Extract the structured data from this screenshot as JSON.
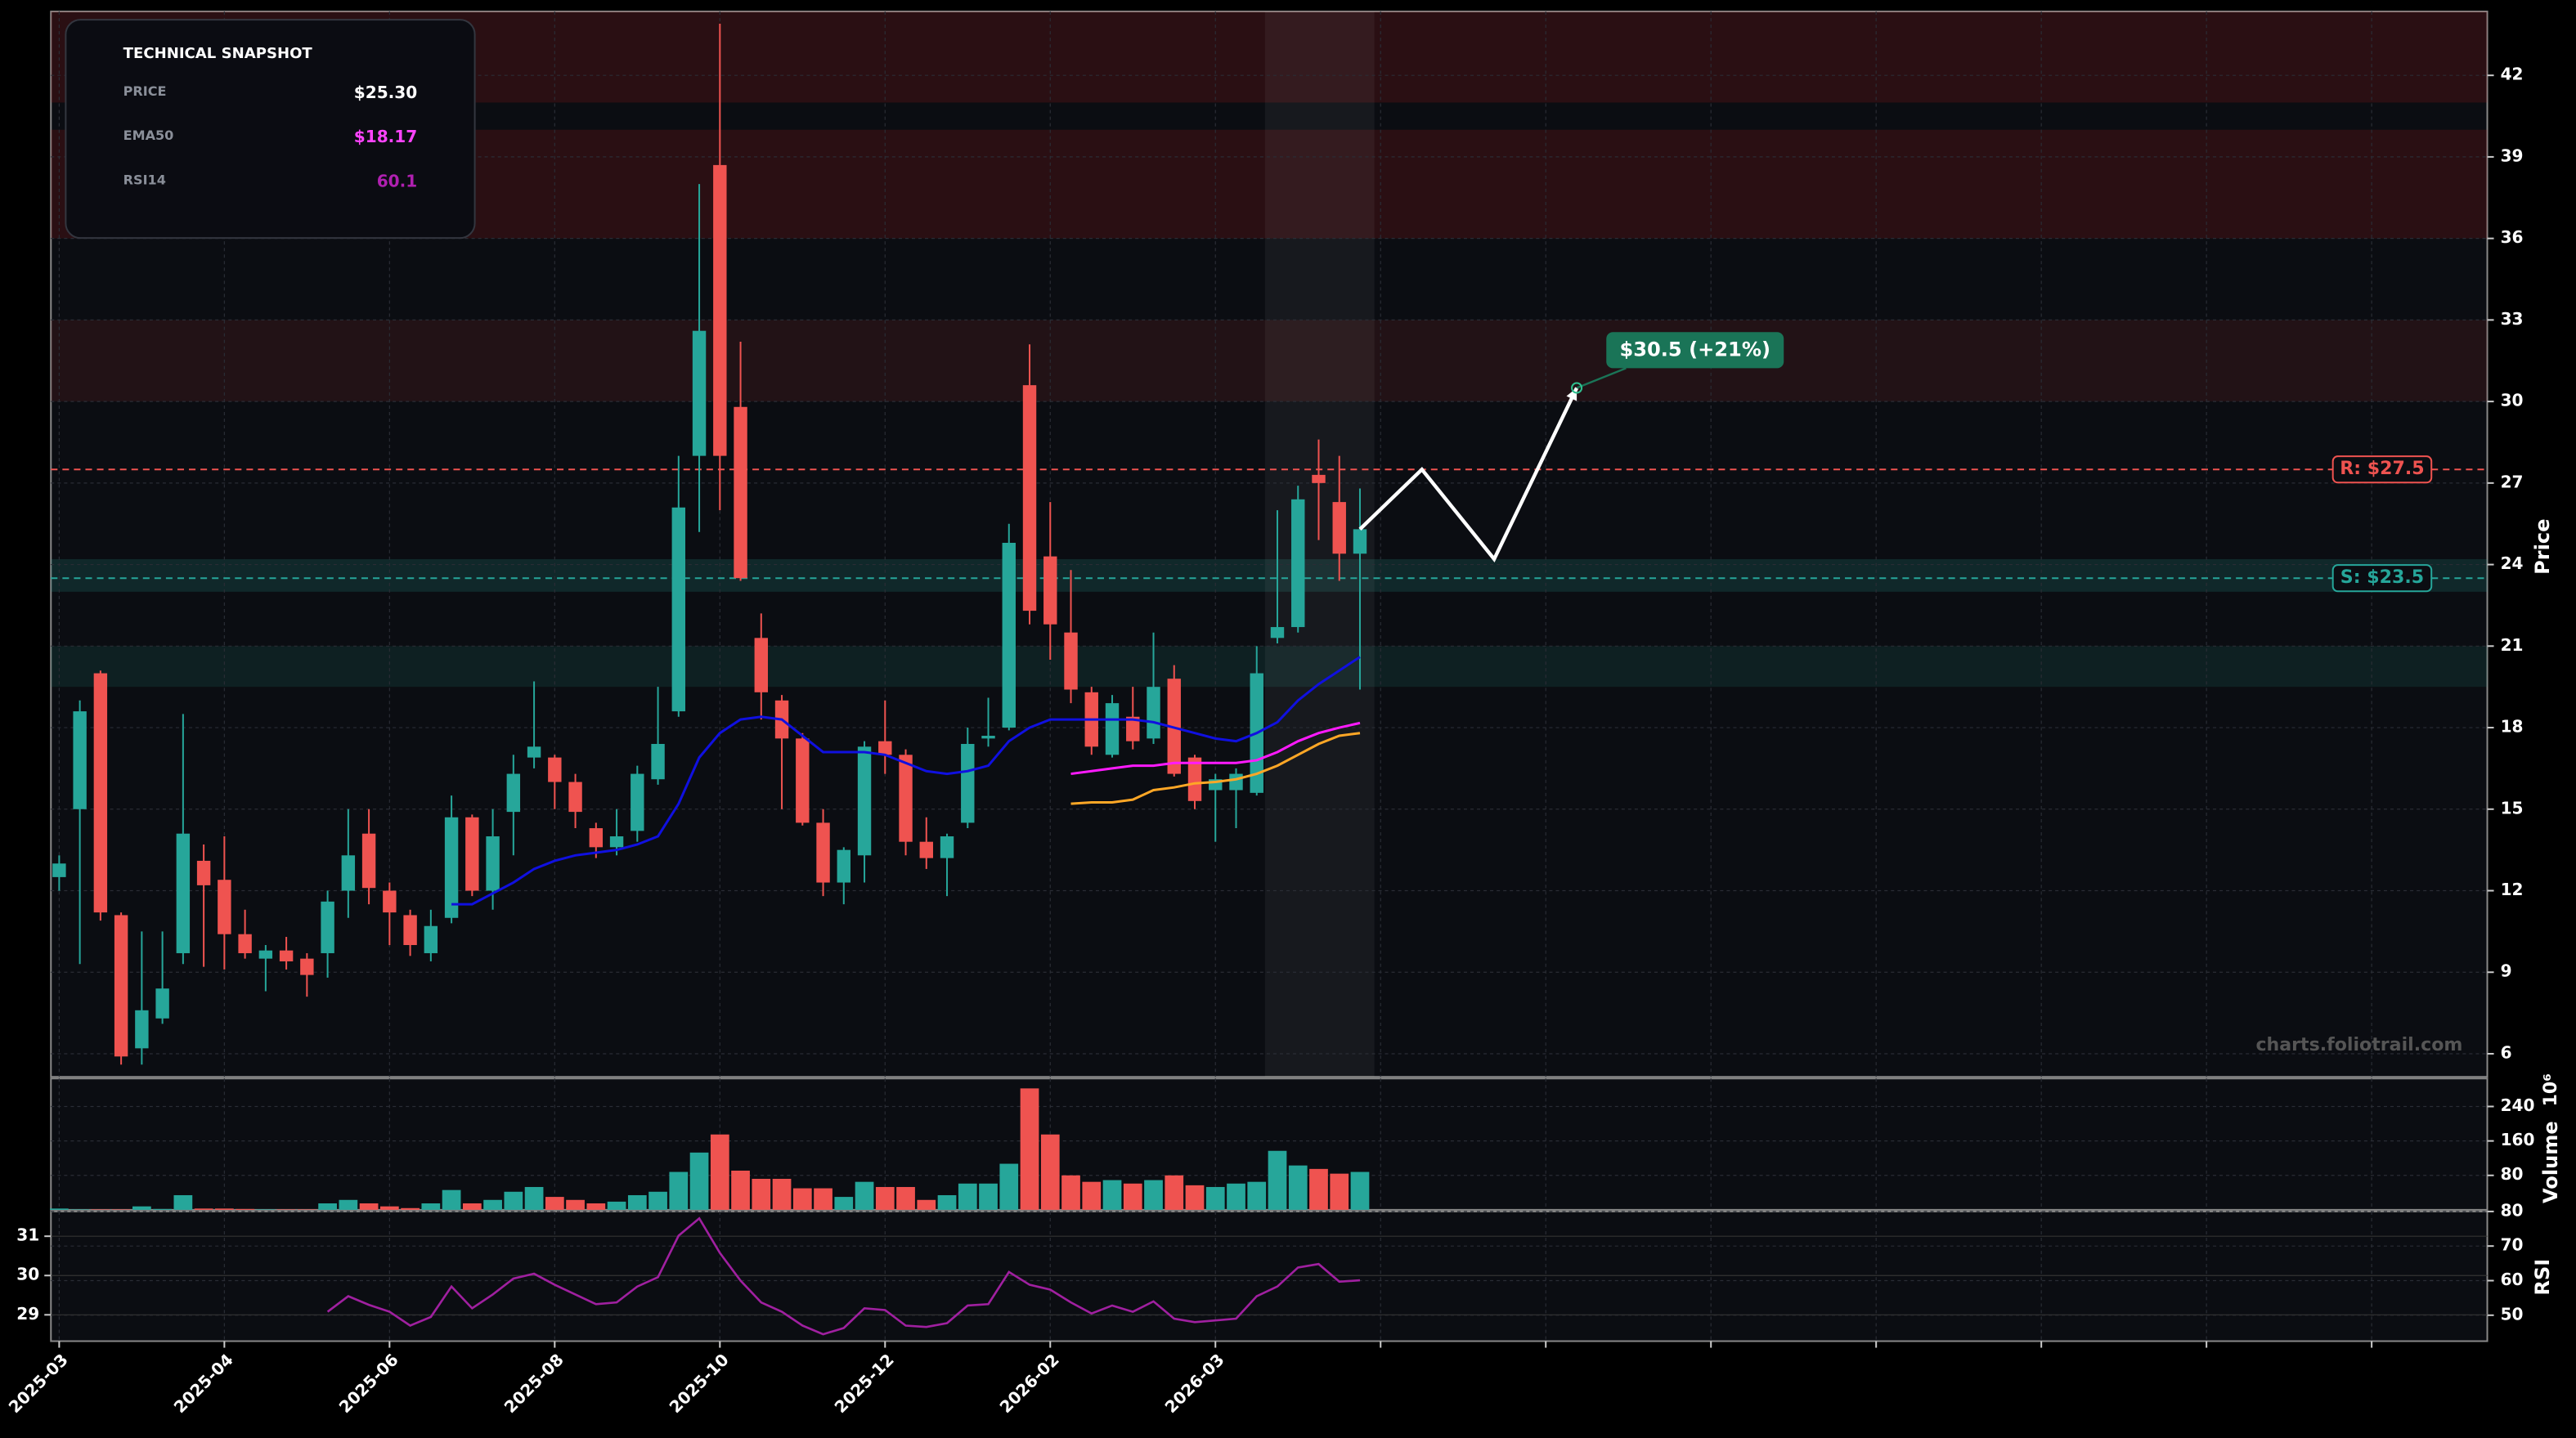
{
  "chart_data": {
    "type": "candlestick",
    "xlim": [
      -0.4,
      117.6
    ],
    "xticks": [
      {
        "value": 0,
        "label": "2025-03"
      },
      {
        "value": 8,
        "label": "2025-04"
      },
      {
        "value": 16,
        "label": "2025-06"
      },
      {
        "value": 24,
        "label": "2025-08"
      },
      {
        "value": 32,
        "label": "2025-10"
      },
      {
        "value": 40,
        "label": "2025-12"
      },
      {
        "value": 48,
        "label": "2026-02"
      },
      {
        "value": 56,
        "label": "2026-03"
      },
      {
        "value": 64,
        "label": null
      },
      {
        "value": 72,
        "label": null
      },
      {
        "value": 80,
        "label": null
      },
      {
        "value": 88,
        "label": null
      },
      {
        "value": 96,
        "label": null
      },
      {
        "value": 104,
        "label": null
      },
      {
        "value": 112,
        "label": null
      }
    ],
    "open": [
      12.5,
      15.0,
      20.0,
      11.1,
      6.2,
      7.3,
      9.7,
      13.1,
      12.4,
      10.4,
      9.5,
      9.8,
      9.5,
      9.7,
      12.0,
      14.1,
      12.0,
      11.1,
      9.7,
      11.0,
      14.7,
      12.0,
      14.9,
      16.9,
      16.9,
      16.0,
      14.3,
      13.6,
      14.2,
      16.1,
      18.6,
      28.0,
      38.7,
      29.8,
      21.3,
      19.0,
      17.6,
      14.5,
      12.3,
      13.3,
      17.5,
      17.0,
      13.8,
      13.2,
      14.5,
      17.6,
      18.0,
      30.6,
      24.3,
      21.5,
      19.3,
      17.0,
      18.4,
      17.6,
      19.8,
      16.9,
      15.7,
      15.7,
      15.6,
      21.3,
      21.7,
      27.3,
      26.3,
      24.4
    ],
    "high": [
      13.3,
      19.0,
      20.1,
      11.2,
      10.5,
      10.5,
      18.5,
      13.7,
      14.0,
      11.3,
      10.0,
      10.3,
      9.7,
      12.0,
      15.0,
      15.0,
      12.3,
      11.3,
      11.3,
      15.5,
      14.8,
      15.0,
      17.0,
      19.7,
      17.0,
      16.3,
      14.5,
      15.0,
      16.6,
      19.5,
      28.0,
      38.0,
      43.9,
      32.2,
      22.2,
      19.2,
      17.8,
      15.0,
      13.6,
      17.5,
      19.0,
      17.2,
      14.7,
      14.1,
      18.0,
      19.1,
      25.5,
      32.1,
      26.3,
      23.8,
      19.5,
      19.2,
      19.5,
      21.5,
      20.3,
      17.0,
      16.3,
      16.5,
      21.0,
      26.0,
      26.9,
      28.6,
      28.0,
      26.8
    ],
    "low": [
      12.0,
      9.3,
      10.9,
      5.6,
      5.6,
      7.1,
      9.3,
      9.2,
      9.1,
      9.5,
      8.3,
      9.1,
      8.1,
      8.8,
      11.0,
      11.5,
      10.0,
      9.6,
      9.4,
      10.8,
      11.8,
      11.3,
      13.3,
      16.5,
      15.0,
      14.3,
      13.2,
      13.3,
      13.8,
      15.9,
      18.4,
      25.2,
      26.0,
      23.4,
      18.3,
      15.0,
      14.4,
      11.8,
      11.5,
      12.3,
      16.3,
      13.3,
      12.8,
      11.8,
      14.3,
      17.3,
      17.9,
      21.8,
      20.5,
      18.9,
      17.0,
      16.9,
      17.2,
      17.4,
      16.2,
      15.0,
      13.8,
      14.3,
      15.5,
      21.1,
      21.5,
      24.9,
      23.4,
      19.4
    ],
    "close": [
      13.0,
      18.6,
      11.2,
      5.9,
      7.6,
      8.4,
      14.1,
      12.2,
      10.4,
      9.7,
      9.8,
      9.4,
      8.9,
      11.6,
      13.3,
      12.1,
      11.2,
      10.0,
      10.7,
      14.7,
      12.0,
      14.0,
      16.3,
      17.3,
      16.0,
      14.9,
      13.6,
      14.0,
      16.3,
      17.4,
      26.1,
      32.6,
      28.0,
      23.5,
      19.3,
      17.6,
      14.5,
      12.3,
      13.5,
      17.3,
      17.0,
      13.8,
      13.2,
      14.0,
      17.4,
      17.7,
      24.8,
      22.3,
      21.8,
      19.4,
      17.3,
      18.9,
      17.5,
      19.5,
      16.3,
      15.3,
      16.1,
      16.3,
      20.0,
      21.7,
      26.4,
      27.0,
      24.4,
      25.3
    ],
    "up_color": "#26a69a",
    "down_color": "#ef5350",
    "ylim": [
      5.15,
      44.35
    ],
    "yticks": [
      6,
      9,
      12,
      15,
      18,
      21,
      24,
      27,
      30,
      33,
      36,
      39,
      42
    ],
    "ylabel": "Price",
    "grid": true,
    "zones": [
      {
        "range": [
          41.0,
          44.35
        ],
        "color": "#b71c1c"
      },
      {
        "range": [
          36.0,
          40.0
        ],
        "color": "#b71c1c"
      },
      {
        "range": [
          30.0,
          33.0
        ],
        "color": "#8d2a2a"
      },
      {
        "range": [
          23.0,
          24.2
        ],
        "color": "#26a69a"
      },
      {
        "range": [
          19.5,
          21.0
        ],
        "color": "#1b7a6e"
      }
    ],
    "levels": [
      {
        "value": 27.5,
        "label": "R: $27.5",
        "color": "#ef5350"
      },
      {
        "value": 23.5,
        "label": "S: $23.5",
        "color": "#26a69a"
      }
    ],
    "lines": [
      {
        "color": "#1010e0",
        "values": [
          null,
          null,
          null,
          null,
          null,
          null,
          null,
          null,
          null,
          null,
          null,
          null,
          null,
          null,
          null,
          null,
          null,
          null,
          null,
          11.5,
          11.5,
          11.9,
          12.3,
          12.8,
          13.1,
          13.3,
          13.4,
          13.5,
          13.7,
          14.0,
          15.2,
          16.9,
          17.8,
          18.3,
          18.4,
          18.3,
          17.7,
          17.1,
          17.1,
          17.1,
          17.0,
          16.7,
          16.4,
          16.3,
          16.4,
          16.6,
          17.5,
          18.0,
          18.3,
          18.3,
          18.3,
          18.3,
          18.3,
          18.2,
          18.0,
          17.8,
          17.6,
          17.5,
          17.8,
          18.2,
          19.0,
          19.6,
          20.1,
          20.6
        ]
      },
      {
        "color": "#ff1aff",
        "values": [
          null,
          null,
          null,
          null,
          null,
          null,
          null,
          null,
          null,
          null,
          null,
          null,
          null,
          null,
          null,
          null,
          null,
          null,
          null,
          null,
          null,
          null,
          null,
          null,
          null,
          null,
          null,
          null,
          null,
          null,
          null,
          null,
          null,
          null,
          null,
          null,
          null,
          null,
          null,
          null,
          null,
          null,
          null,
          null,
          null,
          null,
          null,
          null,
          null,
          16.3,
          16.4,
          16.5,
          16.6,
          16.6,
          16.7,
          16.7,
          16.7,
          16.7,
          16.8,
          17.1,
          17.5,
          17.8,
          18.0,
          18.17
        ]
      },
      {
        "color": "#ffa726",
        "values": [
          null,
          null,
          null,
          null,
          null,
          null,
          null,
          null,
          null,
          null,
          null,
          null,
          null,
          null,
          null,
          null,
          null,
          null,
          null,
          null,
          null,
          null,
          null,
          null,
          null,
          null,
          null,
          null,
          null,
          null,
          null,
          null,
          null,
          null,
          null,
          null,
          null,
          null,
          null,
          null,
          null,
          null,
          null,
          null,
          null,
          null,
          null,
          null,
          null,
          15.2,
          15.25,
          15.25,
          15.35,
          15.7,
          15.8,
          15.95,
          16.0,
          16.1,
          16.3,
          16.6,
          17.0,
          17.4,
          17.7,
          17.8
        ]
      }
    ],
    "projection": {
      "x": [
        63,
        66,
        69.5,
        73.5
      ],
      "y": [
        25.3,
        27.5,
        24.2,
        30.5
      ],
      "label": "$30.5 (+21%)",
      "color": "#ffffff",
      "label_color": "#1a7457"
    },
    "highlight_x": [
      58.4,
      63.7
    ],
    "volume": {
      "values": [
        3,
        1,
        1,
        1,
        8,
        2,
        34,
        3,
        3,
        2,
        1,
        1,
        1,
        15,
        23,
        15,
        8,
        4,
        15,
        46,
        15,
        23,
        42,
        53,
        30,
        23,
        15,
        19,
        34,
        42,
        88,
        133,
        175,
        91,
        72,
        72,
        50,
        50,
        30,
        65,
        53,
        53,
        23,
        34,
        61,
        61,
        107,
        282,
        175,
        80,
        65,
        69,
        61,
        69,
        80,
        57,
        53,
        61,
        65,
        137,
        103,
        95,
        84,
        88
      ],
      "ylim": [
        0,
        305
      ],
      "yticks": [
        80,
        160,
        240
      ],
      "ylabel": "Volume",
      "offset_label": "10⁶"
    },
    "rsi": {
      "values": [
        null,
        null,
        null,
        null,
        null,
        null,
        null,
        null,
        null,
        null,
        null,
        null,
        null,
        51,
        55.5,
        53,
        51,
        47,
        49.5,
        58.3,
        52,
        56,
        60.6,
        62,
        58.8,
        56,
        53.2,
        53.7,
        58.3,
        61,
        73,
        78,
        68,
        60,
        53.7,
        51,
        47,
        44.5,
        46.3,
        52,
        51.5,
        47,
        46.6,
        47.7,
        52.8,
        53.2,
        62.5,
        58.8,
        57.4,
        53.7,
        50.5,
        52.8,
        51,
        54,
        49,
        48,
        48.5,
        49,
        55.5,
        58.3,
        63.8,
        64.8,
        59.7,
        60.1
      ],
      "color": "#a020a0",
      "ylim": [
        42.5,
        80
      ],
      "yticks": [
        50,
        60,
        70,
        80
      ],
      "ylabel": "RSI",
      "y2lim": [
        28.33,
        31.63
      ],
      "y2ticks": [
        29,
        30,
        31
      ]
    },
    "watermark": "charts.foliotrail.com",
    "snapshot": {
      "title": "TECHNICAL SNAPSHOT",
      "rows": [
        {
          "label": "PRICE",
          "value": "$25.30",
          "color": "#ffffff"
        },
        {
          "label": "EMA50",
          "value": "$18.17",
          "color": "#ff44ff"
        },
        {
          "label": "RSI14",
          "value": "60.1",
          "color": "#b020b0"
        }
      ]
    }
  }
}
